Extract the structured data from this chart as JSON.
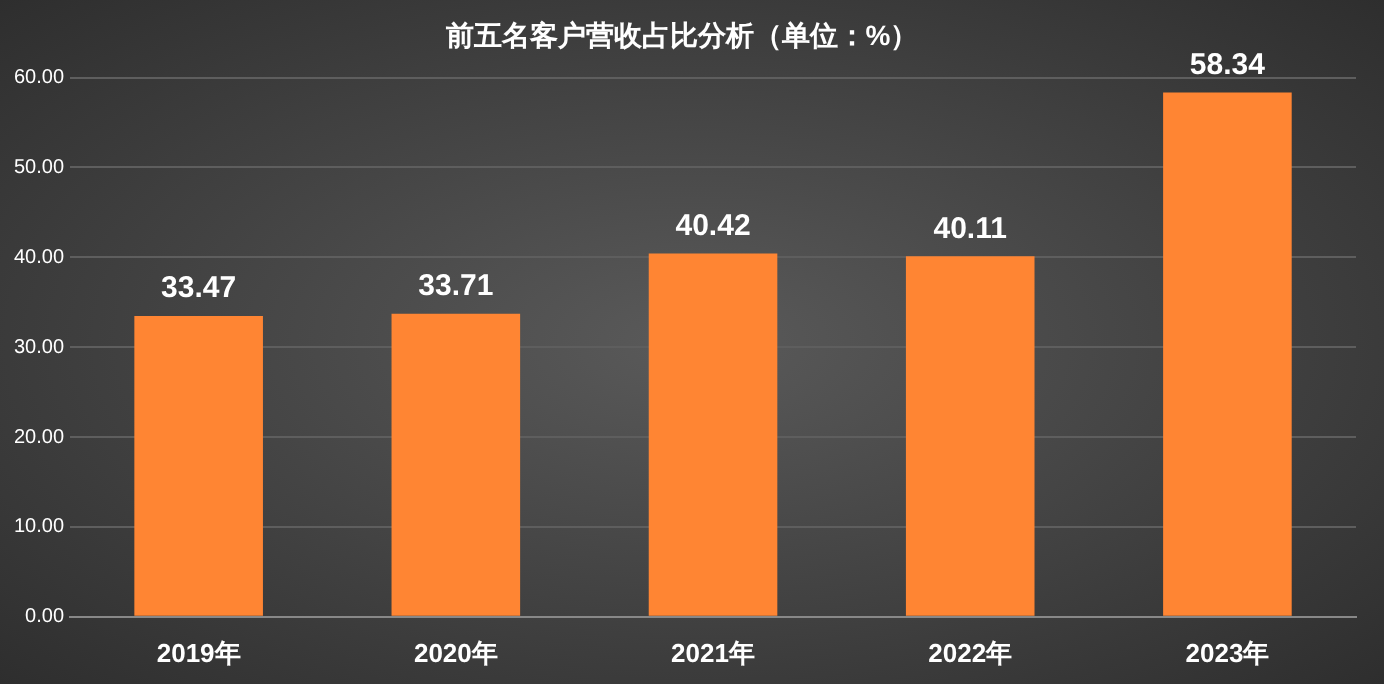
{
  "chart_data": {
    "type": "bar",
    "title": "前五名客户营收占比分析（单位：%）",
    "categories": [
      "2019年",
      "2020年",
      "2021年",
      "2022年",
      "2023年"
    ],
    "values": [
      33.47,
      33.71,
      40.42,
      40.11,
      58.34
    ],
    "color": "#ff8533",
    "ylim": [
      0,
      60
    ],
    "yticks": [
      {
        "value": 0,
        "label": "0.00"
      },
      {
        "value": 10,
        "label": "10.00"
      },
      {
        "value": 20,
        "label": "20.00"
      },
      {
        "value": 30,
        "label": "30.00"
      },
      {
        "value": 40,
        "label": "40.00"
      },
      {
        "value": 50,
        "label": "50.00"
      },
      {
        "value": 60,
        "label": "60.00"
      }
    ],
    "grid": "y",
    "data_labels": true
  }
}
